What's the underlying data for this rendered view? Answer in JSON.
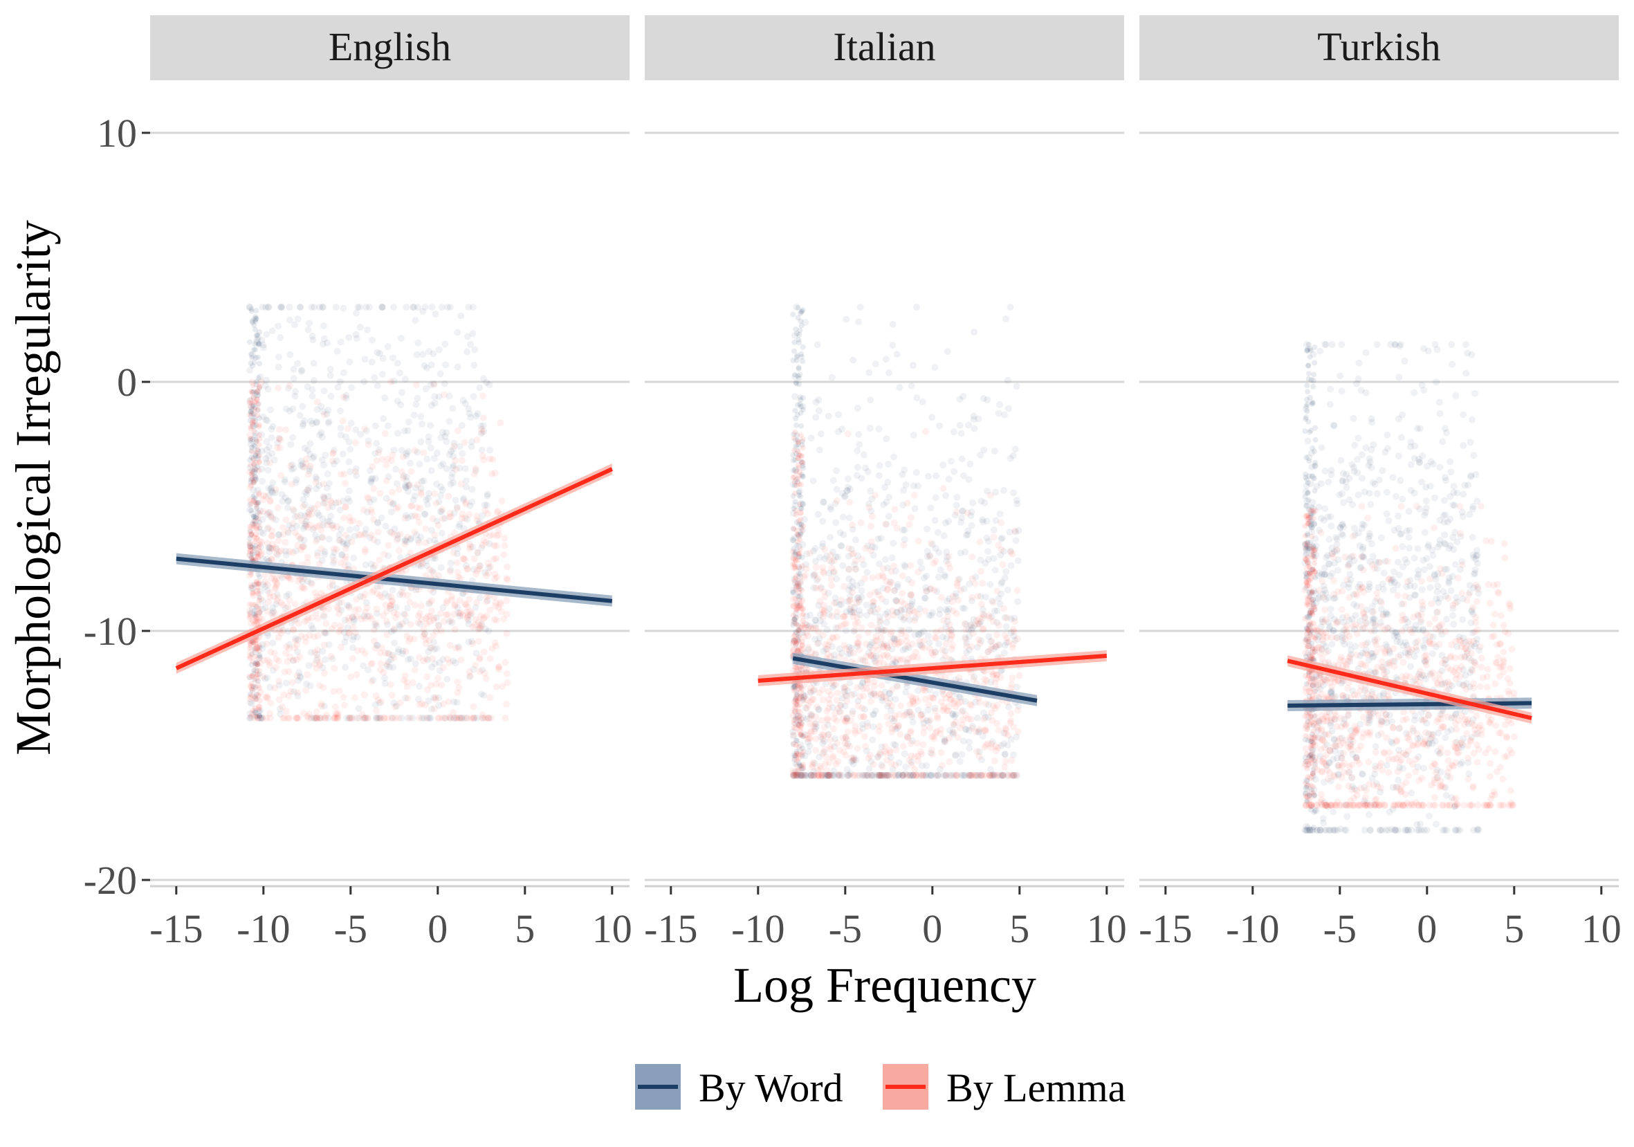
{
  "chart_data": {
    "type": "scatter",
    "xlabel": "Log Frequency",
    "ylabel": "Morphological Irregularity",
    "xlim": [
      -16.5,
      11
    ],
    "ylim": [
      -20.5,
      12
    ],
    "x_ticks": [
      -15,
      -10,
      -5,
      0,
      5,
      10
    ],
    "x_tick_labels": [
      "-15",
      "-10",
      "-5",
      "0",
      "5",
      "10"
    ],
    "y_ticks": [
      10,
      0,
      -10,
      -20
    ],
    "y_tick_labels": [
      "10",
      "0",
      "-10",
      "-20"
    ],
    "grid": true,
    "legend_position": "bottom",
    "legend": [
      {
        "label": "By Word",
        "color": "#1c3d64",
        "band_color": "#8aa0ba"
      },
      {
        "label": "By Lemma",
        "color": "#ff2a1a",
        "band_color": "#f9aaa0"
      }
    ],
    "panels": [
      {
        "title": "English",
        "series": [
          {
            "name": "By Word",
            "trend": {
              "x": [
                -15,
                10
              ],
              "y": [
                -7.1,
                -8.8
              ]
            },
            "cloud": {
              "x_range": [
                -10.8,
                3
              ],
              "y_mean": -5.5,
              "y_sd": 4.8,
              "y_range": [
                -13.5,
                3
              ]
            }
          },
          {
            "name": "By Lemma",
            "trend": {
              "x": [
                -15,
                10
              ],
              "y": [
                -11.5,
                -3.5
              ]
            },
            "cloud": {
              "x_range": [
                -10.8,
                4
              ],
              "y_mean": -8.5,
              "y_sd": 3.2,
              "y_range": [
                -13.5,
                0
              ]
            }
          }
        ]
      },
      {
        "title": "Italian",
        "series": [
          {
            "name": "By Word",
            "trend": {
              "x": [
                -8,
                6
              ],
              "y": [
                -11.1,
                -12.8
              ]
            },
            "cloud": {
              "x_range": [
                -8,
                5
              ],
              "y_mean": -10,
              "y_sd": 5,
              "y_range": [
                -15.8,
                3
              ]
            }
          },
          {
            "name": "By Lemma",
            "trend": {
              "x": [
                -10,
                10
              ],
              "y": [
                -12,
                -11
              ]
            },
            "cloud": {
              "x_range": [
                -8,
                5
              ],
              "y_mean": -12,
              "y_sd": 3,
              "y_range": [
                -15.8,
                -2
              ]
            }
          }
        ]
      },
      {
        "title": "Turkish",
        "series": [
          {
            "name": "By Word",
            "trend": {
              "x": [
                -8,
                6
              ],
              "y": [
                -13,
                -12.9
              ]
            },
            "cloud": {
              "x_range": [
                -7,
                3
              ],
              "y_mean": -10,
              "y_sd": 5,
              "y_range": [
                -18,
                1.5
              ]
            }
          },
          {
            "name": "By Lemma",
            "trend": {
              "x": [
                -8,
                6
              ],
              "y": [
                -11.2,
                -13.5
              ]
            },
            "cloud": {
              "x_range": [
                -7,
                5
              ],
              "y_mean": -13,
              "y_sd": 3,
              "y_range": [
                -17,
                -5
              ]
            }
          }
        ]
      }
    ]
  }
}
